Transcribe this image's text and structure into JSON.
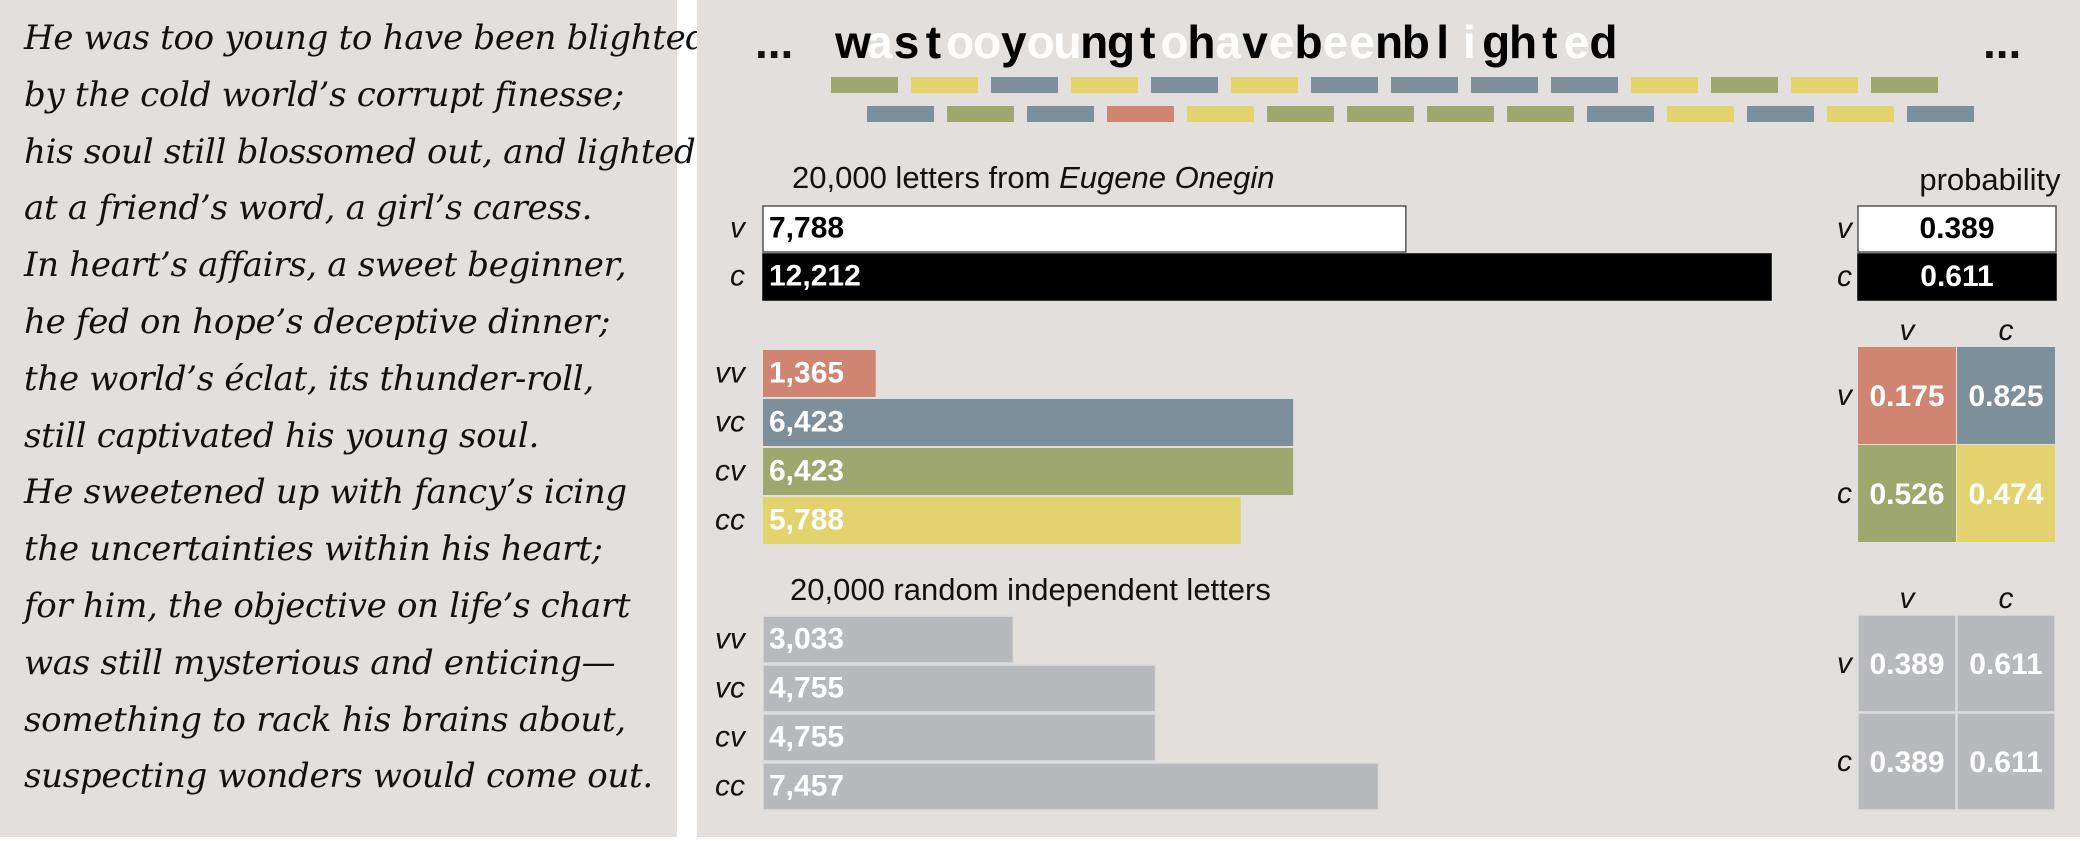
{
  "poem": {
    "lines": [
      "He was too young to have been blighted",
      "by the cold world’s corrupt finesse;",
      "his soul still blossomed out, and lighted",
      "at a friend’s word, a girl’s caress.",
      "In heart’s affairs, a sweet beginner,",
      "he fed on hope’s deceptive dinner;",
      "the world’s éclat, its thunder-roll,",
      "still captivated his young soul.",
      "He sweetened up with fancy’s icing",
      "the uncertainties within his heart;",
      "for him, the objective on life’s chart",
      "was still mysterious and enticing—",
      "something to rack his brains about,",
      "suspecting wonders would come out."
    ]
  },
  "letters": {
    "prefix": "...",
    "suffix": "...",
    "sequence": [
      {
        "ch": "w",
        "type": "c"
      },
      {
        "ch": "a",
        "type": "v"
      },
      {
        "ch": "s",
        "type": "c"
      },
      {
        "ch": "t",
        "type": "c"
      },
      {
        "ch": "o",
        "type": "v"
      },
      {
        "ch": "o",
        "type": "v"
      },
      {
        "ch": "y",
        "type": "c"
      },
      {
        "ch": "o",
        "type": "v"
      },
      {
        "ch": "u",
        "type": "v"
      },
      {
        "ch": "n",
        "type": "c"
      },
      {
        "ch": "g",
        "type": "c"
      },
      {
        "ch": "t",
        "type": "c"
      },
      {
        "ch": "o",
        "type": "v"
      },
      {
        "ch": "h",
        "type": "c"
      },
      {
        "ch": "a",
        "type": "v"
      },
      {
        "ch": "v",
        "type": "c"
      },
      {
        "ch": "e",
        "type": "v"
      },
      {
        "ch": "b",
        "type": "c"
      },
      {
        "ch": "e",
        "type": "v"
      },
      {
        "ch": "e",
        "type": "v"
      },
      {
        "ch": "n",
        "type": "c"
      },
      {
        "ch": "b",
        "type": "c"
      },
      {
        "ch": "l",
        "type": "c"
      },
      {
        "ch": "i",
        "type": "v"
      },
      {
        "ch": "g",
        "type": "c"
      },
      {
        "ch": "h",
        "type": "c"
      },
      {
        "ch": "t",
        "type": "c"
      },
      {
        "ch": "e",
        "type": "v"
      },
      {
        "ch": "d",
        "type": "c"
      }
    ],
    "pair_row_1": [
      "cv",
      "cc",
      "vc",
      "cc",
      "vc",
      "cc",
      "vc",
      "vc",
      "vc",
      "vc",
      "cc",
      "cv",
      "cc",
      "cv"
    ],
    "pair_row_2": [
      "vc",
      "cv",
      "vc",
      "vv",
      "cc",
      "cv",
      "cv",
      "cv",
      "cv",
      "vc",
      "cc",
      "vc",
      "cc",
      "vc"
    ]
  },
  "colors": {
    "background": "#e2dfdc",
    "vowel_letter": "#ffffff",
    "consonant_letter": "#000000",
    "vv": "#cf8571",
    "vc": "#7e8f9c",
    "cv": "#9ea86e",
    "cc": "#e3d36f",
    "random": "#b8b9bc"
  },
  "chart_data": [
    {
      "type": "bar",
      "title": "20,000 letters from Eugene Onegin",
      "title_plain": "20,000 letters from ",
      "title_italic": "Eugene Onegin",
      "categories": [
        "v",
        "c"
      ],
      "values": [
        7788,
        12212
      ],
      "value_labels": [
        "7,788",
        "12,212"
      ]
    },
    {
      "type": "bar",
      "categories": [
        "vv",
        "vc",
        "cv",
        "cc"
      ],
      "values": [
        1365,
        6423,
        6423,
        5788
      ],
      "value_labels": [
        "1,365",
        "6,423",
        "6,423",
        "5,788"
      ]
    },
    {
      "type": "bar",
      "title": "20,000 random independent letters",
      "categories": [
        "vv",
        "vc",
        "cv",
        "cc"
      ],
      "values": [
        3033,
        4755,
        4755,
        7457
      ],
      "value_labels": [
        "3,033",
        "4,755",
        "4,755",
        "7,457"
      ]
    },
    {
      "type": "table",
      "title": "probability",
      "rows": [
        "v",
        "c"
      ],
      "values": [
        "0.389",
        "0.611"
      ]
    },
    {
      "type": "table",
      "rows": [
        "v",
        "c"
      ],
      "columns": [
        "v",
        "c"
      ],
      "values": [
        [
          "0.175",
          "0.825"
        ],
        [
          "0.526",
          "0.474"
        ]
      ]
    },
    {
      "type": "table",
      "rows": [
        "v",
        "c"
      ],
      "columns": [
        "v",
        "c"
      ],
      "values": [
        [
          "0.389",
          "0.611"
        ],
        [
          "0.389",
          "0.611"
        ]
      ]
    }
  ]
}
